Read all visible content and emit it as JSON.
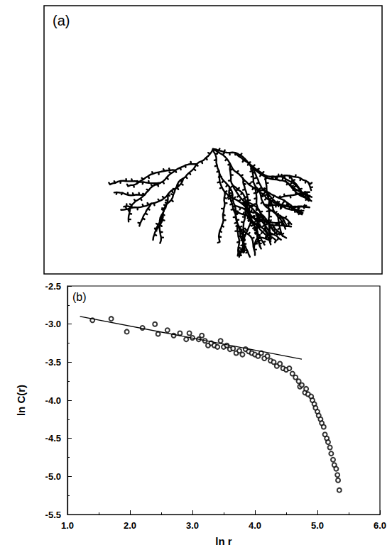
{
  "panel_a": {
    "panel_label": "(a)"
  },
  "chart_data": {
    "type": "scatter",
    "panel_label": "(b)",
    "x_label": "ln r",
    "y_label": "ln C(r)",
    "xlim": [
      1.0,
      6.0
    ],
    "xticks": [
      {
        "value": 1,
        "label": "1.0"
      },
      {
        "value": 2,
        "label": "2.0"
      },
      {
        "value": 3,
        "label": "3.0"
      },
      {
        "value": 4,
        "label": "4.0"
      },
      {
        "value": 5,
        "label": "5.0"
      },
      {
        "value": 6,
        "label": "6.0"
      }
    ],
    "ylim": [
      -5.5,
      -2.5
    ],
    "yticks": [
      {
        "value": -5.5,
        "label": "-5.5"
      },
      {
        "value": -5,
        "label": "-5.0"
      },
      {
        "value": -4.5,
        "label": "-4.5"
      },
      {
        "value": -4,
        "label": "-4.0"
      },
      {
        "value": -3.5,
        "label": "-3.5"
      },
      {
        "value": -3,
        "label": "-3.0"
      },
      {
        "value": -2.5,
        "label": "-2.5"
      }
    ],
    "grid": false,
    "series": [
      {
        "type": "scatter",
        "marker": "open circle",
        "color": "#000000",
        "x": [
          1.4,
          1.7,
          1.95,
          2.2,
          2.4,
          2.45,
          2.6,
          2.7,
          2.8,
          2.9,
          2.95,
          3.0,
          3.1,
          3.15,
          3.2,
          3.25,
          3.3,
          3.35,
          3.4,
          3.45,
          3.5,
          3.55,
          3.6,
          3.65,
          3.7,
          3.75,
          3.8,
          3.85,
          3.9,
          3.95,
          4.0,
          4.05,
          4.1,
          4.15,
          4.2,
          4.25,
          4.3,
          4.35,
          4.4,
          4.45,
          4.5,
          4.55,
          4.6,
          4.65,
          4.7,
          4.72,
          4.75,
          4.8,
          4.82,
          4.85,
          4.9,
          4.92,
          4.95,
          4.97,
          5.0,
          5.02,
          5.05,
          5.07,
          5.1,
          5.12,
          5.15,
          5.17,
          5.2,
          5.22,
          5.25,
          5.27,
          5.3,
          5.32,
          5.33,
          5.35
        ],
        "values": [
          -2.95,
          -2.93,
          -3.1,
          -3.05,
          -3.0,
          -3.13,
          -3.08,
          -3.15,
          -3.12,
          -3.2,
          -3.12,
          -3.18,
          -3.2,
          -3.15,
          -3.22,
          -3.28,
          -3.25,
          -3.28,
          -3.3,
          -3.22,
          -3.3,
          -3.28,
          -3.33,
          -3.32,
          -3.38,
          -3.35,
          -3.4,
          -3.33,
          -3.36,
          -3.38,
          -3.4,
          -3.42,
          -3.38,
          -3.45,
          -3.42,
          -3.48,
          -3.5,
          -3.55,
          -3.52,
          -3.58,
          -3.6,
          -3.58,
          -3.65,
          -3.7,
          -3.75,
          -3.82,
          -3.8,
          -3.9,
          -3.85,
          -3.92,
          -3.95,
          -4.0,
          -4.05,
          -4.1,
          -4.15,
          -4.2,
          -4.25,
          -4.3,
          -4.35,
          -4.45,
          -4.5,
          -4.55,
          -4.62,
          -4.7,
          -4.78,
          -4.85,
          -4.9,
          -4.98,
          -5.05,
          -5.18
        ]
      },
      {
        "type": "line",
        "line_style": "solid",
        "color": "#000000",
        "x": [
          1.2,
          4.75
        ],
        "values": [
          -2.9,
          -3.46
        ]
      }
    ]
  }
}
